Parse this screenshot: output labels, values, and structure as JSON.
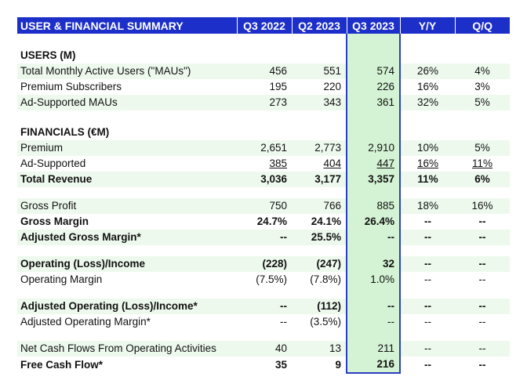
{
  "header": {
    "title": "USER & FINANCIAL SUMMARY",
    "cols": [
      "Q3 2022",
      "Q2 2023",
      "Q3 2023",
      "Y/Y",
      "Q/Q"
    ]
  },
  "users": {
    "heading": "USERS (M)",
    "rows": [
      {
        "label": "Total Monthly Active Users (\"MAUs\")",
        "v": [
          "456",
          "551",
          "574",
          "26%",
          "4%"
        ]
      },
      {
        "label": "Premium Subscribers",
        "v": [
          "195",
          "220",
          "226",
          "16%",
          "3%"
        ]
      },
      {
        "label": "Ad-Supported MAUs",
        "v": [
          "273",
          "343",
          "361",
          "32%",
          "5%"
        ]
      }
    ]
  },
  "financials": {
    "heading": "FINANCIALS (€M)",
    "premium": {
      "label": "Premium",
      "v": [
        "2,651",
        "2,773",
        "2,910",
        "10%",
        "5%"
      ]
    },
    "ad_supported": {
      "label": "Ad-Supported",
      "v": [
        "385",
        "404",
        "447",
        "16%",
        "11%"
      ]
    },
    "total_revenue": {
      "label": "Total Revenue",
      "v": [
        "3,036",
        "3,177",
        "3,357",
        "11%",
        "6%"
      ]
    },
    "gross_profit": {
      "label": "Gross Profit",
      "v": [
        "750",
        "766",
        "885",
        "18%",
        "16%"
      ]
    },
    "gross_margin": {
      "label": "Gross Margin",
      "v": [
        "24.7%",
        "24.1%",
        "26.4%",
        "--",
        "--"
      ]
    },
    "adj_gross_margin": {
      "label": "Adjusted Gross Margin*",
      "v": [
        "--",
        "25.5%",
        "--",
        "--",
        "--"
      ]
    },
    "op_income": {
      "label": "Operating (Loss)/Income",
      "v": [
        "(228)",
        "(247)",
        "32",
        "--",
        "--"
      ]
    },
    "op_margin": {
      "label": "Operating Margin",
      "v": [
        "(7.5%)",
        "(7.8%)",
        "1.0%",
        "--",
        "--"
      ]
    },
    "adj_op_income": {
      "label": "Adjusted Operating (Loss)/Income*",
      "v": [
        "--",
        "(112)",
        "--",
        "--",
        "--"
      ]
    },
    "adj_op_margin": {
      "label": "Adjusted Operating Margin*",
      "v": [
        "--",
        "(3.5%)",
        "--",
        "--",
        "--"
      ]
    },
    "net_cash": {
      "label": "Net Cash Flows From Operating Activities",
      "v": [
        "40",
        "13",
        "211",
        "--",
        "--"
      ]
    },
    "fcf": {
      "label": "Free Cash Flow*",
      "v": [
        "35",
        "9",
        "216",
        "--",
        "--"
      ]
    }
  }
}
